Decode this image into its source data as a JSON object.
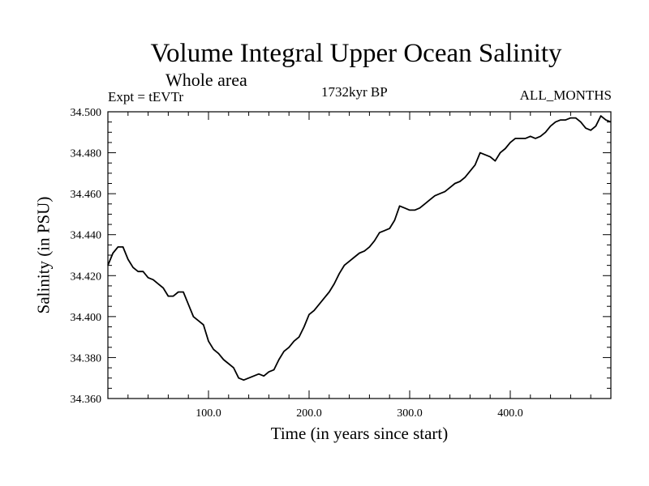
{
  "chart_data": {
    "type": "line",
    "title": "Volume Integral Upper Ocean Salinity",
    "subtitle": "Whole area",
    "experiment": "Expt = tEVTr",
    "period": "1732kyr BP",
    "months": "ALL_MONTHS",
    "xlabel": "Time (in years since start)",
    "ylabel": "Salinity (in PSU)",
    "xlim": [
      0,
      500
    ],
    "ylim": [
      34.36,
      34.5
    ],
    "xticks": [
      {
        "value": 100,
        "label": "100.0"
      },
      {
        "value": 200,
        "label": "200.0"
      },
      {
        "value": 300,
        "label": "300.0"
      },
      {
        "value": 400,
        "label": "400.0"
      }
    ],
    "yticks": [
      {
        "value": 34.36,
        "label": "34.360"
      },
      {
        "value": 34.38,
        "label": "34.380"
      },
      {
        "value": 34.4,
        "label": "34.400"
      },
      {
        "value": 34.42,
        "label": "34.420"
      },
      {
        "value": 34.44,
        "label": "34.440"
      },
      {
        "value": 34.46,
        "label": "34.460"
      },
      {
        "value": 34.48,
        "label": "34.480"
      },
      {
        "value": 34.5,
        "label": "34.500"
      }
    ],
    "series": [
      {
        "name": "Salinity",
        "x": [
          0,
          5,
          10,
          15,
          20,
          25,
          30,
          35,
          40,
          45,
          50,
          55,
          60,
          65,
          70,
          75,
          80,
          85,
          90,
          95,
          100,
          105,
          110,
          115,
          120,
          125,
          130,
          135,
          140,
          145,
          150,
          155,
          160,
          165,
          170,
          175,
          180,
          185,
          190,
          195,
          200,
          205,
          210,
          215,
          220,
          225,
          230,
          235,
          240,
          245,
          250,
          255,
          260,
          265,
          270,
          275,
          280,
          285,
          290,
          295,
          300,
          305,
          310,
          315,
          320,
          325,
          330,
          335,
          340,
          345,
          350,
          355,
          360,
          365,
          370,
          375,
          380,
          385,
          390,
          395,
          400,
          405,
          410,
          415,
          420,
          425,
          430,
          435,
          440,
          445,
          450,
          455,
          460,
          465,
          470,
          475,
          480,
          485,
          490,
          495,
          500
        ],
        "values": [
          34.425,
          34.431,
          34.434,
          34.434,
          34.428,
          34.424,
          34.422,
          34.422,
          34.419,
          34.418,
          34.416,
          34.414,
          34.41,
          34.41,
          34.412,
          34.412,
          34.406,
          34.4,
          34.398,
          34.396,
          34.388,
          34.384,
          34.382,
          34.379,
          34.377,
          34.375,
          34.37,
          34.369,
          34.37,
          34.371,
          34.372,
          34.371,
          34.373,
          34.374,
          34.379,
          34.383,
          34.385,
          34.388,
          34.39,
          34.395,
          34.401,
          34.403,
          34.406,
          34.409,
          34.412,
          34.416,
          34.421,
          34.425,
          34.427,
          34.429,
          34.431,
          34.432,
          34.434,
          34.437,
          34.441,
          34.442,
          34.443,
          34.447,
          34.454,
          34.453,
          34.452,
          34.452,
          34.453,
          34.455,
          34.457,
          34.459,
          34.46,
          34.461,
          34.463,
          34.465,
          34.466,
          34.468,
          34.471,
          34.474,
          34.48,
          34.479,
          34.478,
          34.476,
          34.48,
          34.482,
          34.485,
          34.487,
          34.487,
          34.487,
          34.488,
          34.487,
          34.488,
          34.49,
          34.493,
          34.495,
          34.496,
          34.496,
          34.497,
          34.497,
          34.495,
          34.492,
          34.491,
          34.493,
          34.498,
          34.496,
          34.495
        ]
      }
    ]
  }
}
